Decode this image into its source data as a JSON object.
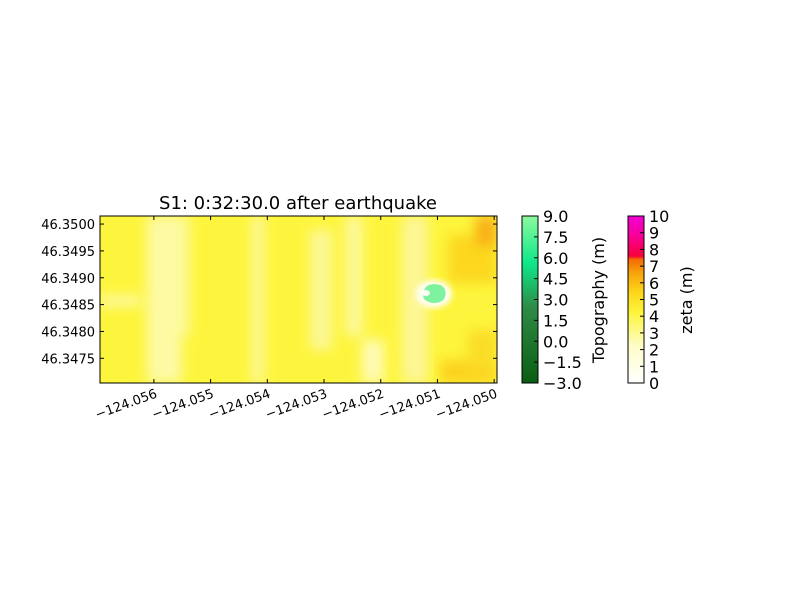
{
  "chart_data": [
    {
      "type": "heatmap",
      "title": "S1: 0:32:30.0 after earthquake",
      "xlabel": "",
      "ylabel": "",
      "xlim": [
        -124.05695,
        -124.04995
      ],
      "ylim": [
        46.34704,
        46.35015
      ],
      "xticks": [
        -124.056,
        -124.055,
        -124.054,
        -124.053,
        -124.052,
        -124.051,
        -124.05
      ],
      "xtick_labels": [
        "−124.056",
        "−124.055",
        "−124.054",
        "−124.053",
        "−124.052",
        "−124.051",
        "−124.050"
      ],
      "yticks": [
        46.3475,
        46.348,
        46.3485,
        46.349,
        46.3495,
        46.35
      ],
      "ytick_labels": [
        "46.3475",
        "46.3480",
        "46.3485",
        "46.3490",
        "46.3495",
        "46.3500"
      ],
      "grid": false,
      "field_description_colors": {
        "dominant": "#fdf53d",
        "light_streak": "#fdfbb0",
        "orange_patch": "#fbc61d",
        "island_topography": "#7ff29f"
      },
      "island": {
        "center": [
          -124.0507,
          46.3486
        ],
        "radius_lon": 0.00025,
        "radius_lat": 0.00011
      }
    },
    {
      "type": "colorbar",
      "label": "Topography (m)",
      "vmin": -3.0,
      "vmax": 9.0,
      "ticks": [
        9.0,
        7.5,
        6.0,
        4.5,
        3.0,
        1.5,
        0.0,
        -1.5,
        -3.0
      ],
      "tick_labels": [
        "9.0",
        "7.5",
        "6.0",
        "4.5",
        "3.0",
        "1.5",
        "0.0",
        "−1.5",
        "−3.0"
      ],
      "colors": [
        "#0b5d13",
        "#2e8b46",
        "#0ee88a",
        "#8cf99e"
      ]
    },
    {
      "type": "colorbar",
      "label": "zeta (m)",
      "vmin": 0,
      "vmax": 10,
      "ticks": [
        10,
        9,
        8,
        7,
        6,
        5,
        4,
        3,
        2,
        1,
        0
      ],
      "tick_labels": [
        "10",
        "9",
        "8",
        "7",
        "6",
        "5",
        "4",
        "3",
        "2",
        "1",
        "0"
      ],
      "colors": [
        "#ffffff",
        "#fefdc8",
        "#fdf53d",
        "#fbd418",
        "#f8a30c",
        "#f66a04",
        "#f7003a",
        "#f400d4"
      ]
    }
  ]
}
